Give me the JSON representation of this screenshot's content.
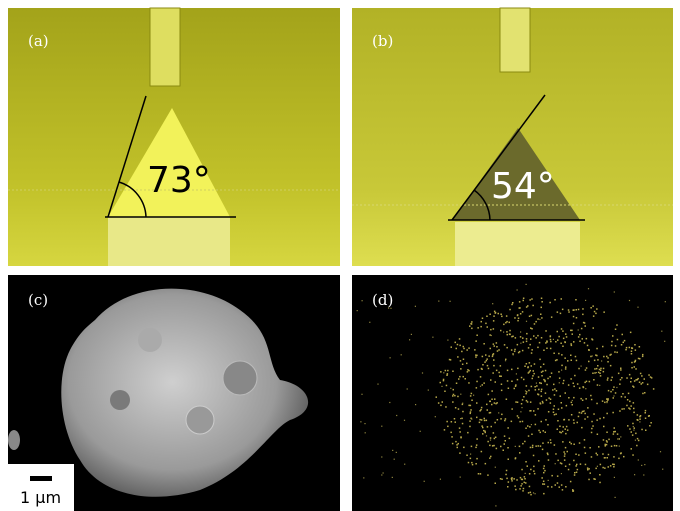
{
  "panels": [
    {
      "label": "(a)",
      "angle": "73°"
    },
    {
      "label": "(b)",
      "angle": "54°"
    },
    {
      "label": "(c)",
      "scale_bar": "1 μm"
    },
    {
      "label": "(d)"
    }
  ]
}
